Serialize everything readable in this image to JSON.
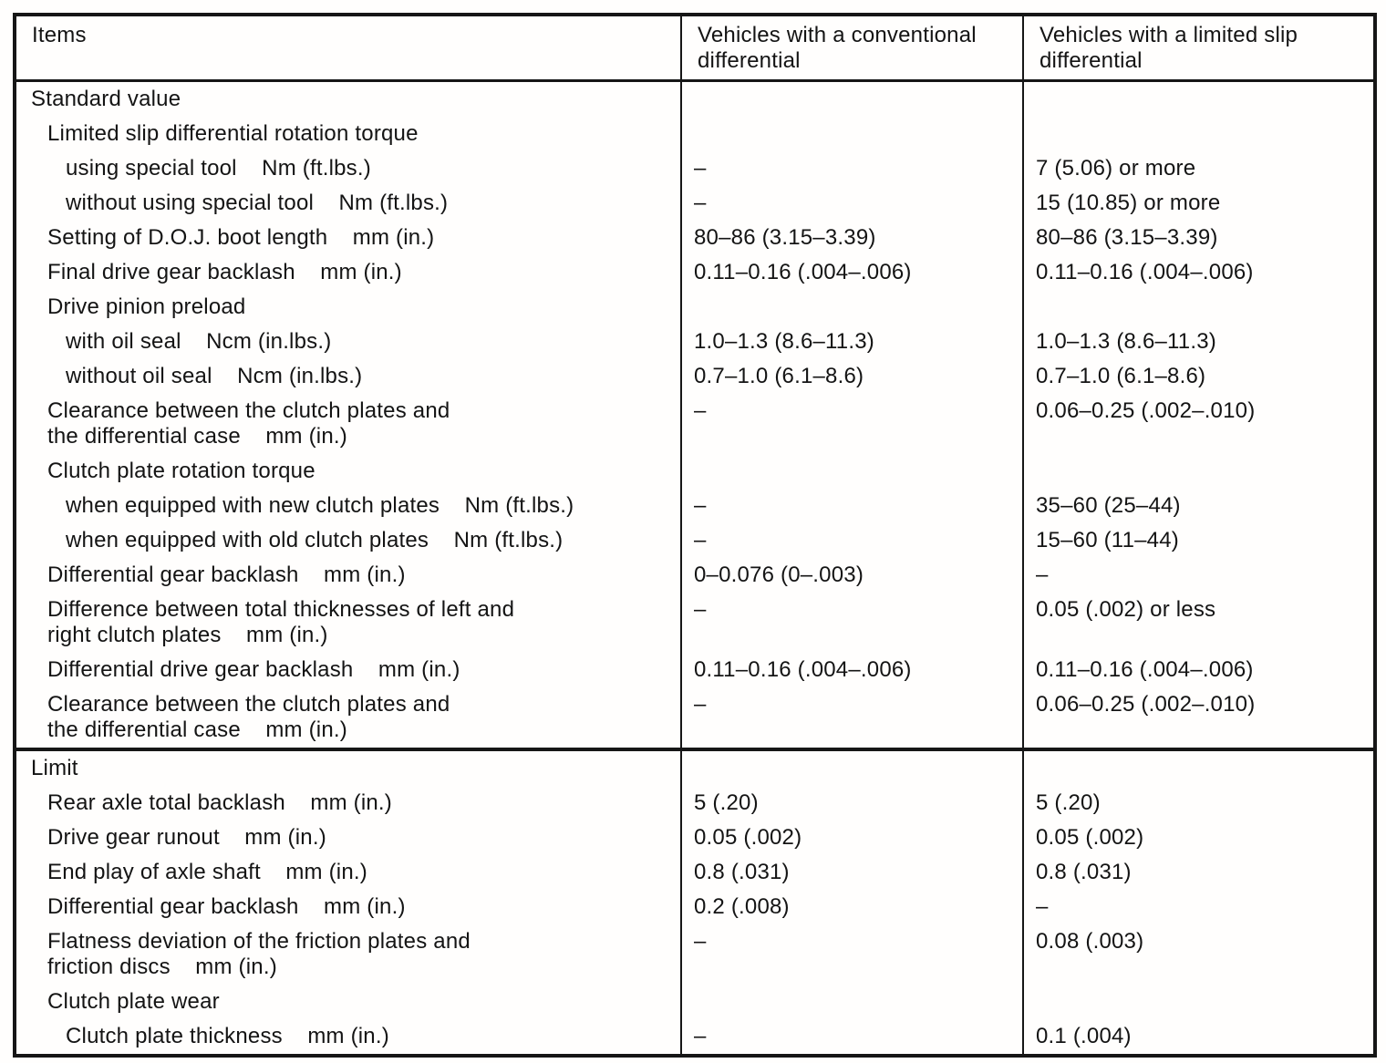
{
  "table": {
    "columns": [
      "Items",
      "Vehicles with a conventional\ndifferential",
      "Vehicles with a limited slip\ndifferential"
    ],
    "sections": [
      {
        "id": "standard",
        "rows": [
          {
            "item": "Standard value",
            "indent": 0,
            "conventional": "",
            "limited": ""
          },
          {
            "item": "Limited slip differential rotation torque",
            "indent": 1,
            "conventional": "",
            "limited": ""
          },
          {
            "item": "using special tool    Nm (ft.lbs.)",
            "indent": 2,
            "conventional": "–",
            "limited": "7 (5.06) or more"
          },
          {
            "item": "without using special tool    Nm (ft.lbs.)",
            "indent": 2,
            "conventional": "–",
            "limited": "15 (10.85) or more"
          },
          {
            "item": "Setting of D.O.J. boot length    mm (in.)",
            "indent": 1,
            "conventional": "80–86 (3.15–3.39)",
            "limited": "80–86 (3.15–3.39)"
          },
          {
            "item": "Final drive gear backlash    mm (in.)",
            "indent": 1,
            "conventional": "0.11–0.16 (.004–.006)",
            "limited": "0.11–0.16 (.004–.006)"
          },
          {
            "item": "Drive pinion preload",
            "indent": 1,
            "conventional": "",
            "limited": ""
          },
          {
            "item": "with oil seal    Ncm (in.lbs.)",
            "indent": 2,
            "conventional": "1.0–1.3 (8.6–11.3)",
            "limited": "1.0–1.3 (8.6–11.3)"
          },
          {
            "item": "without oil seal    Ncm (in.lbs.)",
            "indent": 2,
            "conventional": "0.7–1.0 (6.1–8.6)",
            "limited": "0.7–1.0 (6.1–8.6)"
          },
          {
            "item": "Clearance between the clutch plates and\nthe differential case    mm (in.)",
            "indent": 1,
            "conventional": "–",
            "limited": "0.06–0.25 (.002–.010)"
          },
          {
            "item": "Clutch plate rotation torque",
            "indent": 1,
            "conventional": "",
            "limited": ""
          },
          {
            "item": "when equipped with new clutch plates    Nm (ft.lbs.)",
            "indent": 2,
            "conventional": "–",
            "limited": "35–60 (25–44)"
          },
          {
            "item": "when equipped with old clutch plates    Nm (ft.lbs.)",
            "indent": 2,
            "conventional": "–",
            "limited": "15–60 (11–44)"
          },
          {
            "item": "Differential gear backlash    mm (in.)",
            "indent": 1,
            "conventional": "0–0.076 (0–.003)",
            "limited": "–"
          },
          {
            "item": "Difference between total thicknesses of left and\nright clutch plates    mm (in.)",
            "indent": 1,
            "conventional": "–",
            "limited": "0.05 (.002) or less"
          },
          {
            "item": "Differential drive gear backlash    mm (in.)",
            "indent": 1,
            "conventional": "0.11–0.16 (.004–.006)",
            "limited": "0.11–0.16 (.004–.006)"
          },
          {
            "item": "Clearance between the clutch plates and\nthe differential case    mm (in.)",
            "indent": 1,
            "conventional": "–",
            "limited": "0.06–0.25 (.002–.010)"
          }
        ]
      },
      {
        "id": "limit",
        "rows": [
          {
            "item": "Limit",
            "indent": 0,
            "conventional": "",
            "limited": ""
          },
          {
            "item": "Rear axle total backlash    mm (in.)",
            "indent": 1,
            "conventional": "5 (.20)",
            "limited": "5 (.20)"
          },
          {
            "item": "Drive gear runout    mm (in.)",
            "indent": 1,
            "conventional": "0.05 (.002)",
            "limited": "0.05 (.002)"
          },
          {
            "item": "End play of axle shaft    mm (in.)",
            "indent": 1,
            "conventional": "0.8 (.031)",
            "limited": "0.8 (.031)"
          },
          {
            "item": "Differential gear backlash    mm (in.)",
            "indent": 1,
            "conventional": "0.2 (.008)",
            "limited": "–"
          },
          {
            "item": "Flatness deviation of the friction plates and\nfriction discs    mm (in.)",
            "indent": 1,
            "conventional": "–",
            "limited": "0.08 (.003)"
          },
          {
            "item": "Clutch plate wear",
            "indent": 1,
            "conventional": "",
            "limited": ""
          },
          {
            "item": "Clutch plate thickness    mm (in.)",
            "indent": 2,
            "conventional": "–",
            "limited": "0.1 (.004)"
          }
        ]
      }
    ]
  }
}
